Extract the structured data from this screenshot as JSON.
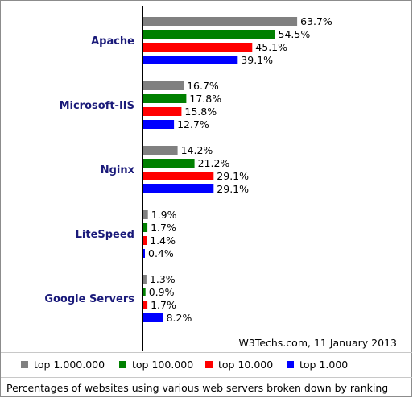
{
  "chart_data": {
    "type": "bar",
    "orientation": "horizontal",
    "categories": [
      "Apache",
      "Microsoft-IIS",
      "Nginx",
      "LiteSpeed",
      "Google Servers"
    ],
    "series": [
      {
        "name": "top 1.000.000",
        "color": "#808080",
        "values": [
          63.7,
          16.7,
          14.2,
          1.9,
          1.3
        ]
      },
      {
        "name": "top 100.000",
        "color": "#008000",
        "values": [
          54.5,
          17.8,
          21.2,
          1.7,
          0.9
        ]
      },
      {
        "name": "top 10.000",
        "color": "#ff0000",
        "values": [
          45.1,
          15.8,
          29.1,
          1.4,
          1.7
        ]
      },
      {
        "name": "top 1.000",
        "color": "#0000ff",
        "values": [
          39.1,
          12.7,
          29.1,
          0.4,
          8.2
        ]
      }
    ],
    "value_suffix": "%",
    "value_labels": true,
    "xlim": [
      0,
      100
    ],
    "grid": false,
    "legend_position": "bottom",
    "credit": "W3Techs.com, 11 January 2013",
    "caption": "Percentages of websites using various web servers broken down by ranking"
  }
}
